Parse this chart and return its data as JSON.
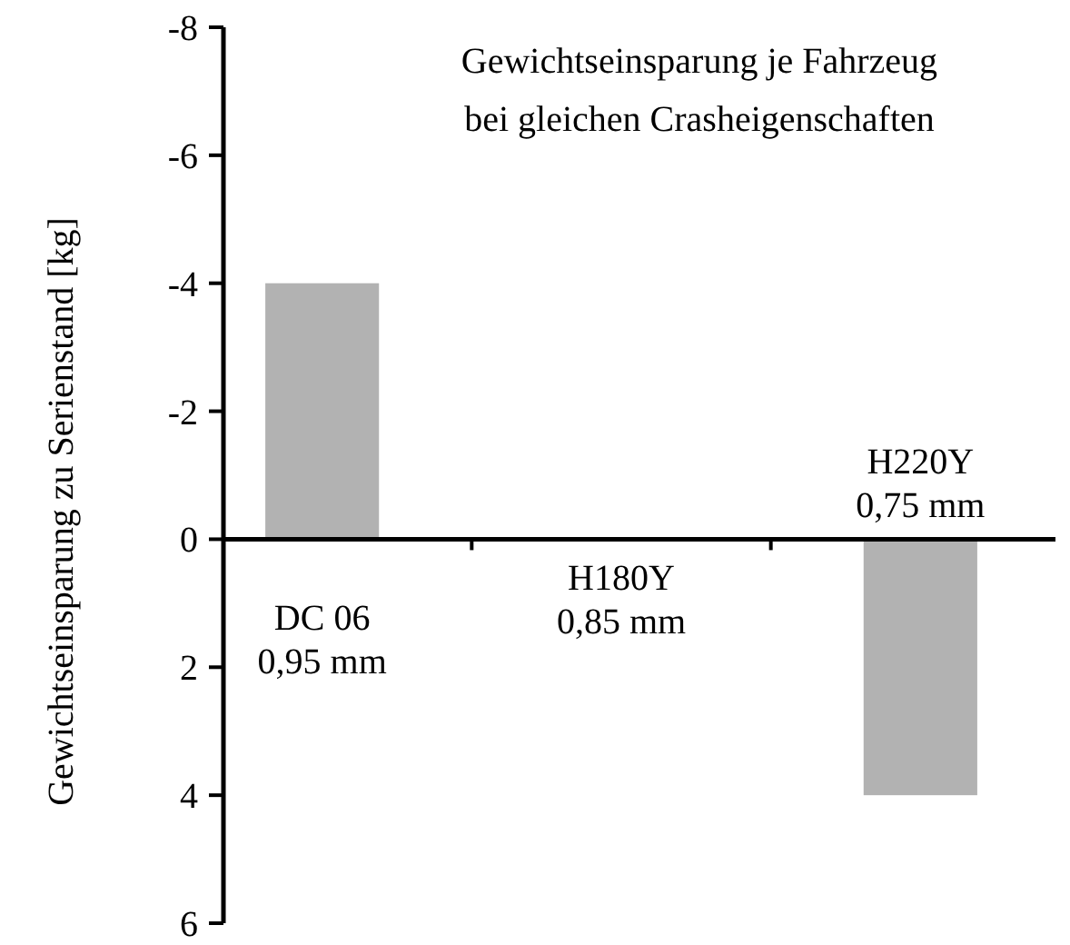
{
  "chart_data": {
    "type": "bar",
    "title": "Gewichtseinsparung je Fahrzeug\nbei gleichen Crasheigenschaften",
    "ylabel": "Gewichtseinsparung zu Serienstand [kg]",
    "categories": [
      "DC 06\n0,95 mm",
      "H180Y\n0,85 mm",
      "H220Y\n0,75 mm"
    ],
    "values": [
      -4,
      0,
      4
    ],
    "color": "#b2b2b2",
    "ylim": [
      6,
      -8
    ],
    "yticks": [
      6,
      4,
      2,
      0,
      -2,
      -4,
      -6,
      -8
    ]
  }
}
